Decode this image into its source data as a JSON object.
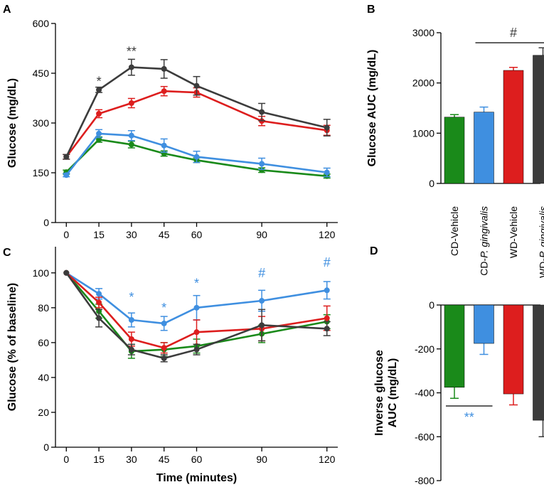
{
  "colors": {
    "CD-Vehicle": "#1a8a1a",
    "CD-P. gingivalis": "#3f8fe0",
    "WD-Vehicle": "#dd1e1e",
    "WD-P. gingivalis": "#3c3c3c",
    "annotation_dark": "#3c3c3c",
    "annotation_blue": "#3f8fe0"
  },
  "chart_data": [
    {
      "panel": "A",
      "type": "line",
      "title": "",
      "xlabel": "",
      "ylabel": "Glucose (mg/dL)",
      "x": [
        0,
        15,
        30,
        45,
        60,
        90,
        120
      ],
      "x_ticks": [
        "0",
        "15",
        "30",
        "45",
        "60",
        "90",
        "120"
      ],
      "xlim": [
        -5,
        125
      ],
      "ylim": [
        0,
        600
      ],
      "y_ticks": [
        "0",
        "150",
        "300",
        "450",
        "600"
      ],
      "series": [
        {
          "name": "CD-Vehicle",
          "values": [
            152,
            250,
            235,
            208,
            188,
            158,
            140
          ],
          "errors": [
            6,
            8,
            10,
            8,
            7,
            7,
            6
          ]
        },
        {
          "name": "CD-P. gingivalis",
          "values": [
            143,
            268,
            262,
            232,
            198,
            177,
            151
          ],
          "errors": [
            5,
            12,
            15,
            20,
            17,
            17,
            13
          ]
        },
        {
          "name": "WD-Vehicle",
          "values": [
            198,
            328,
            360,
            396,
            392,
            306,
            278
          ],
          "errors": [
            7,
            12,
            14,
            14,
            14,
            14,
            15
          ]
        },
        {
          "name": "WD-P. gingivalis",
          "values": [
            198,
            400,
            468,
            463,
            412,
            333,
            286
          ],
          "errors": [
            7,
            8,
            24,
            28,
            28,
            26,
            25
          ]
        }
      ],
      "annotations": [
        {
          "text": "*",
          "x": 15,
          "y": 425,
          "color": "annotation_dark"
        },
        {
          "text": "**",
          "x": 30,
          "y": 515,
          "color": "annotation_dark"
        }
      ]
    },
    {
      "panel": "B",
      "type": "bar",
      "title": "",
      "xlabel": "",
      "ylabel": "Glucose AUC (mg/dL)",
      "categories": [
        "CD-Vehicle",
        "CD-P. gingivalis",
        "WD-Vehicle",
        "WD-P. gingivalis"
      ],
      "values": [
        1320,
        1420,
        2250,
        2550
      ],
      "errors": [
        50,
        100,
        60,
        150
      ],
      "ylim": [
        0,
        3000
      ],
      "y_ticks": [
        "0",
        "1000",
        "2000",
        "3000"
      ],
      "annotations": [
        {
          "text": "#",
          "between": [
            "CD-P. gingivalis",
            "WD-P. gingivalis"
          ],
          "y": 2800,
          "color": "annotation_dark"
        }
      ]
    },
    {
      "panel": "C",
      "type": "line",
      "title": "",
      "xlabel": "Time (minutes)",
      "ylabel": "Glucose (% of baseline)",
      "x": [
        0,
        15,
        30,
        45,
        60,
        90,
        120
      ],
      "x_ticks": [
        "0",
        "15",
        "30",
        "45",
        "60",
        "90",
        "120"
      ],
      "xlim": [
        -5,
        125
      ],
      "ylim": [
        0,
        115
      ],
      "y_ticks": [
        "0",
        "20",
        "40",
        "60",
        "80",
        "100"
      ],
      "series": [
        {
          "name": "CD-Vehicle",
          "values": [
            100,
            78,
            55,
            56,
            58,
            65,
            72
          ],
          "errors": [
            0,
            4,
            4,
            4,
            4,
            5,
            4
          ]
        },
        {
          "name": "CD-P. gingivalis",
          "values": [
            100,
            88,
            73,
            71,
            80,
            84,
            90
          ],
          "errors": [
            0,
            3,
            4,
            4,
            7,
            6,
            5
          ]
        },
        {
          "name": "WD-Vehicle",
          "values": [
            100,
            83,
            62,
            57,
            66,
            68,
            74
          ],
          "errors": [
            0,
            3,
            4,
            3,
            7,
            7,
            7
          ]
        },
        {
          "name": "WD-P. gingivalis",
          "values": [
            100,
            74,
            56,
            51,
            56,
            70,
            68
          ],
          "errors": [
            0,
            5,
            3,
            2,
            3,
            9,
            4
          ]
        }
      ],
      "annotations": [
        {
          "text": "*",
          "x": 30,
          "y": 86,
          "color": "annotation_blue"
        },
        {
          "text": "*",
          "x": 45,
          "y": 80,
          "color": "annotation_blue"
        },
        {
          "text": "*",
          "x": 60,
          "y": 94,
          "color": "annotation_blue"
        },
        {
          "text": "#",
          "x": 90,
          "y": 100,
          "color": "annotation_blue"
        },
        {
          "text": "#",
          "x": 120,
          "y": 106,
          "color": "annotation_blue"
        }
      ]
    },
    {
      "panel": "D",
      "type": "bar",
      "title": "",
      "xlabel": "",
      "ylabel": "Inverse glucose AUC (mg/dL)",
      "categories": [
        "CD-Vehicle",
        "CD-P. gingivalis",
        "WD-Vehicle",
        "WD-P. gingivalis"
      ],
      "values": [
        -375,
        -175,
        -405,
        -525
      ],
      "errors": [
        50,
        50,
        50,
        75
      ],
      "ylim": [
        -800,
        0
      ],
      "y_ticks": [
        "0",
        "-200",
        "-400",
        "-600",
        "-800"
      ],
      "annotations": [
        {
          "text": "**",
          "between": [
            "CD-Vehicle",
            "CD-P. gingivalis"
          ],
          "y": -460,
          "color": "annotation_blue"
        }
      ]
    }
  ]
}
